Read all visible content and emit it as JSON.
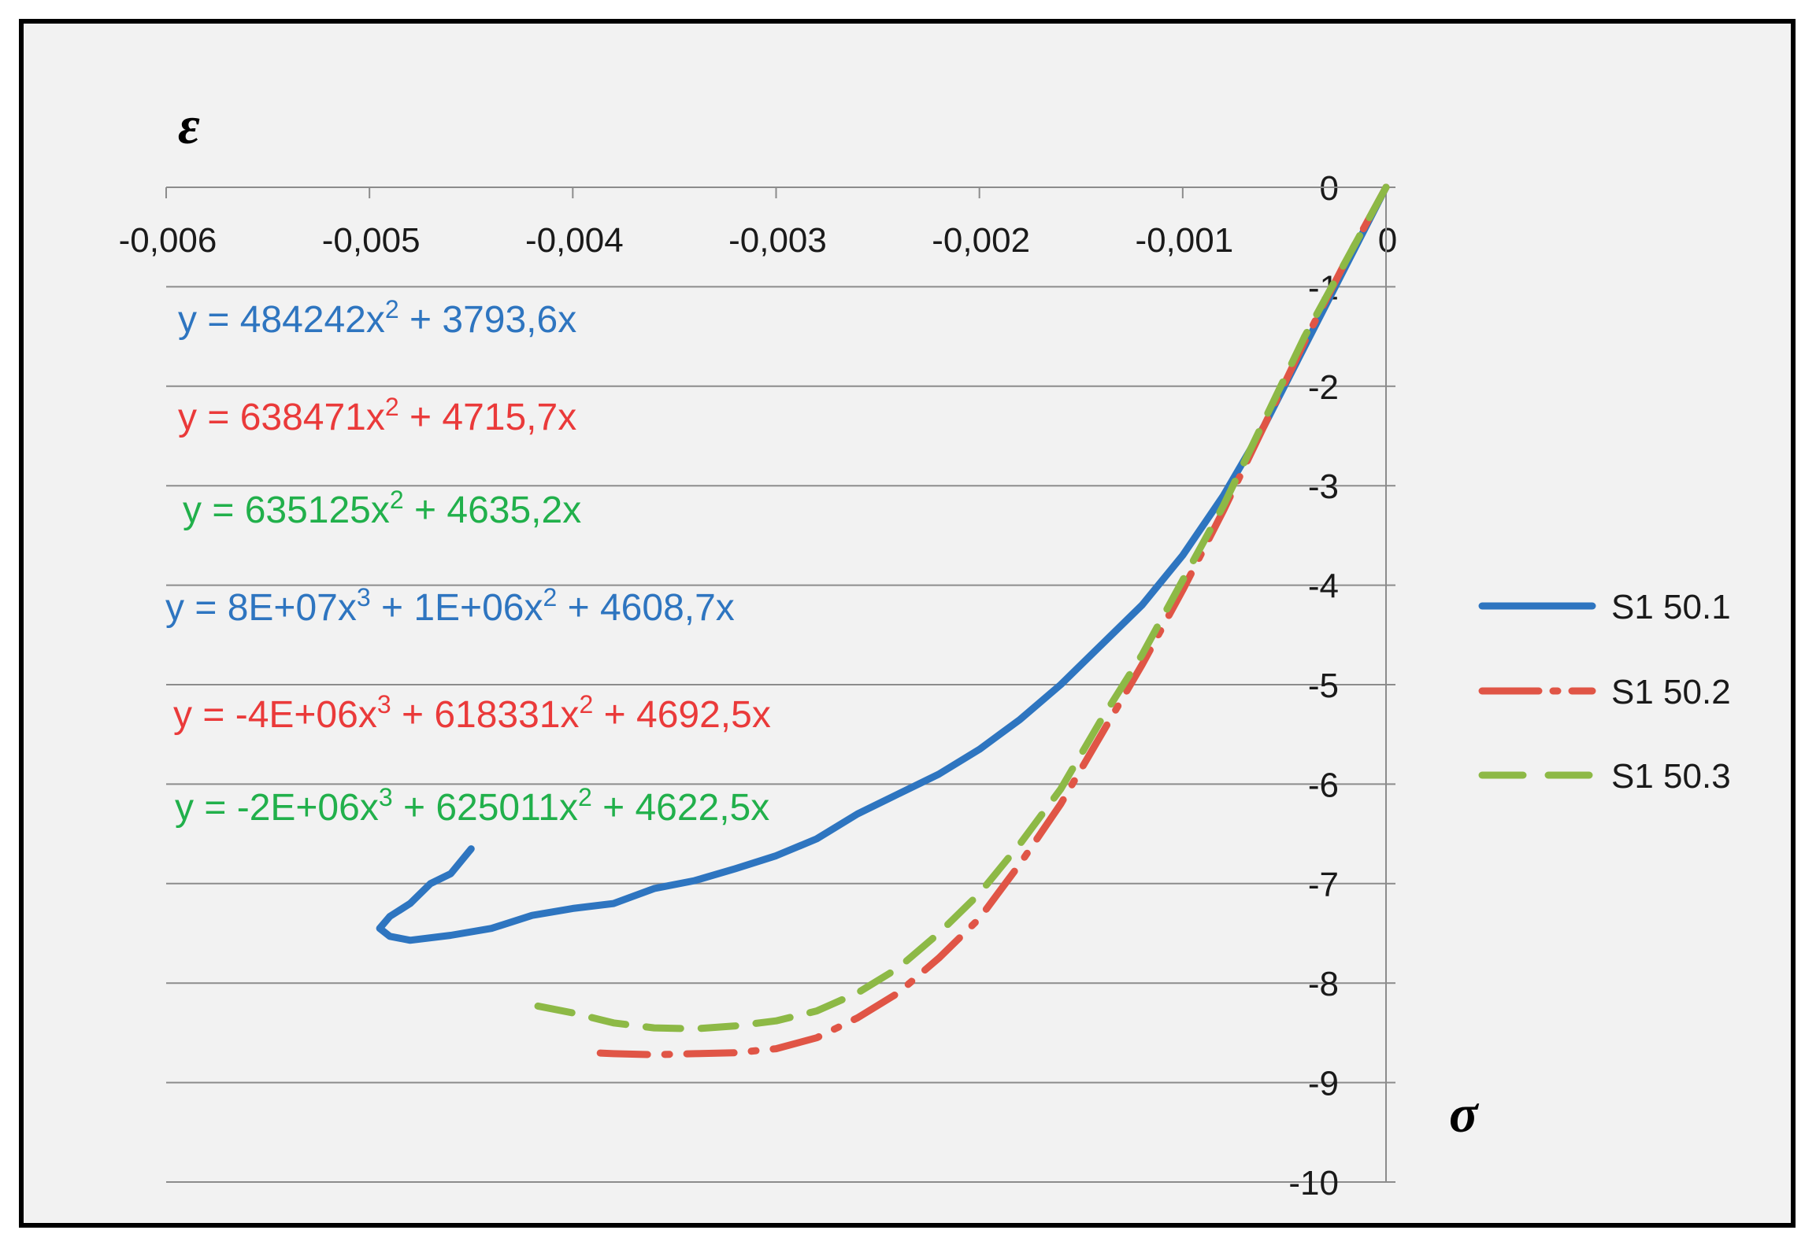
{
  "chart_data": {
    "type": "line",
    "xlabel": "σ",
    "ylabel": "ε",
    "xlim": [
      -0.006,
      0
    ],
    "ylim": [
      -10,
      0
    ],
    "grid": "horizontal",
    "x_ticks": [
      "-0,006",
      "-0,005",
      "-0,004",
      "-0,003",
      "-0,002",
      "-0,001",
      "0"
    ],
    "y_ticks": [
      "0",
      "-1",
      "-2",
      "-3",
      "-4",
      "-5",
      "-6",
      "-7",
      "-8",
      "-9",
      "-10"
    ],
    "legend_position": "right",
    "series": [
      {
        "name": "S1 50.1",
        "color": "#2e75c0",
        "style": "solid",
        "points": [
          [
            0,
            0
          ],
          [
            -0.0002,
            -0.8
          ],
          [
            -0.0004,
            -1.6
          ],
          [
            -0.0006,
            -2.4
          ],
          [
            -0.0008,
            -3.1
          ],
          [
            -0.001,
            -3.7
          ],
          [
            -0.0012,
            -4.2
          ],
          [
            -0.0014,
            -4.6
          ],
          [
            -0.0016,
            -5.0
          ],
          [
            -0.0018,
            -5.35
          ],
          [
            -0.002,
            -5.65
          ],
          [
            -0.0022,
            -5.9
          ],
          [
            -0.0024,
            -6.1
          ],
          [
            -0.0026,
            -6.3
          ],
          [
            -0.0028,
            -6.55
          ],
          [
            -0.003,
            -6.72
          ],
          [
            -0.0032,
            -6.85
          ],
          [
            -0.0034,
            -6.97
          ],
          [
            -0.0036,
            -7.05
          ],
          [
            -0.0038,
            -7.2
          ],
          [
            -0.004,
            -7.25
          ],
          [
            -0.0042,
            -7.32
          ],
          [
            -0.0044,
            -7.45
          ],
          [
            -0.0046,
            -7.52
          ],
          [
            -0.0048,
            -7.57
          ],
          [
            -0.0049,
            -7.53
          ],
          [
            -0.00495,
            -7.45
          ],
          [
            -0.0049,
            -7.33
          ],
          [
            -0.0048,
            -7.2
          ],
          [
            -0.0047,
            -7.0
          ],
          [
            -0.0046,
            -6.9
          ],
          [
            -0.0045,
            -6.65
          ]
        ]
      },
      {
        "name": "S1 50.2",
        "color": "#e05546",
        "style": "dash-dot",
        "points": [
          [
            0,
            0
          ],
          [
            -0.0002,
            -0.75
          ],
          [
            -0.0004,
            -1.55
          ],
          [
            -0.0006,
            -2.4
          ],
          [
            -0.0008,
            -3.25
          ],
          [
            -0.001,
            -4.05
          ],
          [
            -0.0012,
            -4.8
          ],
          [
            -0.0014,
            -5.5
          ],
          [
            -0.0016,
            -6.2
          ],
          [
            -0.0018,
            -6.8
          ],
          [
            -0.002,
            -7.35
          ],
          [
            -0.0022,
            -7.75
          ],
          [
            -0.0024,
            -8.1
          ],
          [
            -0.0026,
            -8.35
          ],
          [
            -0.0028,
            -8.55
          ],
          [
            -0.003,
            -8.66
          ],
          [
            -0.0032,
            -8.7
          ],
          [
            -0.0034,
            -8.71
          ],
          [
            -0.0036,
            -8.72
          ],
          [
            -0.0038,
            -8.71
          ],
          [
            -0.0039,
            -8.7
          ]
        ]
      },
      {
        "name": "S1 50.3",
        "color": "#8db946",
        "style": "dash",
        "points": [
          [
            0,
            0
          ],
          [
            -0.0002,
            -0.75
          ],
          [
            -0.0004,
            -1.5
          ],
          [
            -0.0006,
            -2.35
          ],
          [
            -0.0008,
            -3.2
          ],
          [
            -0.001,
            -3.95
          ],
          [
            -0.0012,
            -4.7
          ],
          [
            -0.0014,
            -5.35
          ],
          [
            -0.0016,
            -6.05
          ],
          [
            -0.0018,
            -6.6
          ],
          [
            -0.002,
            -7.1
          ],
          [
            -0.0022,
            -7.5
          ],
          [
            -0.0024,
            -7.85
          ],
          [
            -0.0026,
            -8.1
          ],
          [
            -0.0028,
            -8.28
          ],
          [
            -0.003,
            -8.38
          ],
          [
            -0.0032,
            -8.43
          ],
          [
            -0.0034,
            -8.46
          ],
          [
            -0.0036,
            -8.45
          ],
          [
            -0.0038,
            -8.4
          ],
          [
            -0.004,
            -8.3
          ],
          [
            -0.0042,
            -8.22
          ]
        ]
      }
    ],
    "annotations": [
      {
        "color": "#2e75c0",
        "parts": [
          "y = 484242x",
          "2",
          " + 3793,6x"
        ]
      },
      {
        "color": "#ea3a3a",
        "parts": [
          "y = 638471x",
          "2",
          " + 4715,7x"
        ]
      },
      {
        "color": "#21b04b",
        "parts": [
          "y = 635125x",
          "2",
          " + 4635,2x"
        ]
      },
      {
        "color": "#2e75c0",
        "parts": [
          "y = 8E+07x",
          "3",
          " + 1E+06x",
          "2",
          " + 4608,7x"
        ]
      },
      {
        "color": "#ea3a3a",
        "parts": [
          "y = -4E+06x",
          "3",
          " + 618331x",
          "2",
          " + 4692,5x"
        ]
      },
      {
        "color": "#21b04b",
        "parts": [
          "y = -2E+06x",
          "3",
          " + 625011x",
          "2",
          " + 4622,5x"
        ]
      }
    ]
  }
}
